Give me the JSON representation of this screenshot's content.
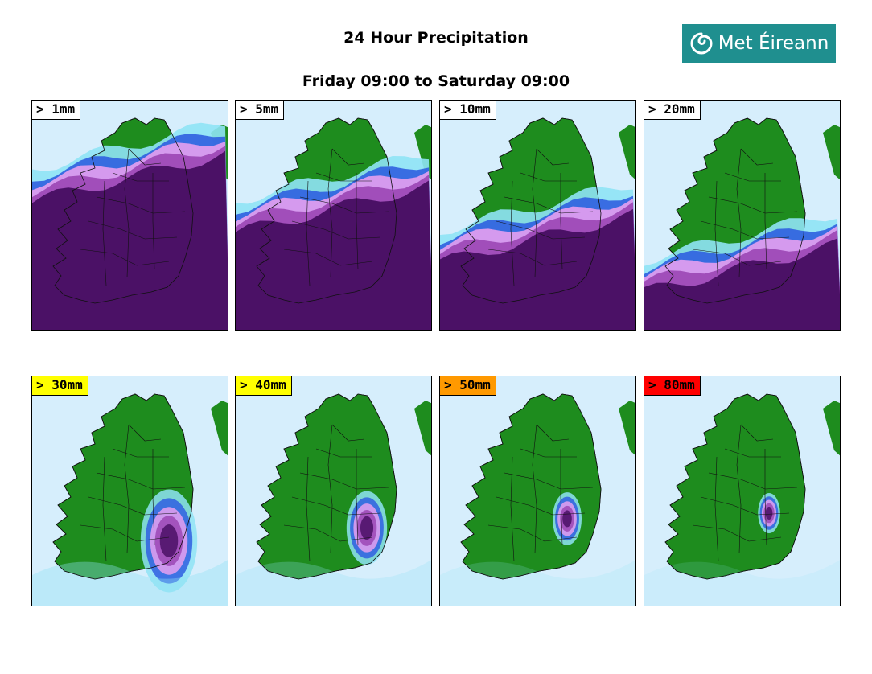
{
  "header": {
    "title": "24 Hour Precipitation",
    "subtitle": "Friday 09:00 to Saturday 09:00",
    "logo_text": "Met Éireann",
    "logo_color": "#1f8f8f"
  },
  "colors": {
    "sea": "#d6eefc",
    "land": "#1e8c1e",
    "rain_light": "#8fe3f5",
    "rain_blue": "#2f5fe0",
    "rain_pink": "#e7a0f0",
    "rain_violet": "#9b46b4",
    "rain_dark": "#4b1166"
  },
  "panels": [
    {
      "label": "> 1mm",
      "badge_color": "#ffffff",
      "rain_front": 0.25
    },
    {
      "label": "> 5mm",
      "badge_color": "#ffffff",
      "rain_front": 0.42
    },
    {
      "label": "> 10mm",
      "badge_color": "#ffffff",
      "rain_front": 0.58
    },
    {
      "label": "> 20mm",
      "badge_color": "#ffffff",
      "rain_front": 0.74
    },
    {
      "label": "> 30mm",
      "badge_color": "#ffff00",
      "rain_front": 0.85
    },
    {
      "label": "> 40mm",
      "badge_color": "#ffff00",
      "rain_front": 0.92
    },
    {
      "label": "> 50mm",
      "badge_color": "#ff9900",
      "rain_front": 0.97
    },
    {
      "label": "> 80mm",
      "badge_color": "#ff0000",
      "rain_front": 1.0
    }
  ]
}
